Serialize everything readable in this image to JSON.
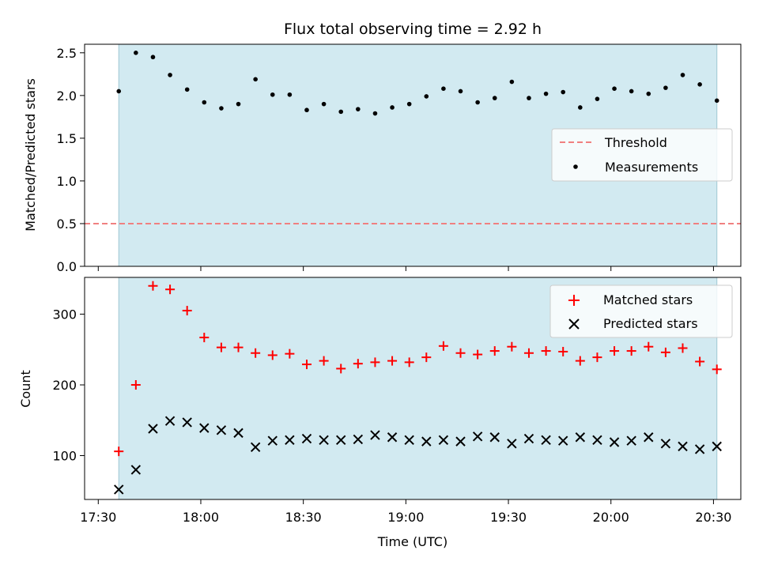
{
  "chart_data": [
    {
      "type": "scatter",
      "title": "Flux total observing time = 2.92 h",
      "ylabel": "Matched/Predicted stars",
      "xlabel": "",
      "ylim": [
        0,
        2.6
      ],
      "yticks": [
        0.0,
        0.5,
        1.0,
        1.5,
        2.0,
        2.5
      ],
      "ytick_labels": [
        "0.0",
        "0.5",
        "1.0",
        "1.5",
        "2.0",
        "2.5"
      ],
      "xlim": [
        "17:26",
        "20:38"
      ],
      "xticks": [
        "17:30",
        "18:00",
        "18:30",
        "19:00",
        "19:30",
        "20:00",
        "20:30"
      ],
      "shaded_interval": [
        "17:36",
        "20:31"
      ],
      "shade_color": "#add8e6",
      "threshold": {
        "name": "Threshold",
        "value": 0.5,
        "color": "#f08080",
        "style": "dashed"
      },
      "series": [
        {
          "name": "Measurements",
          "color": "#000000",
          "marker": "dot",
          "x": [
            "17:36",
            "17:41",
            "17:46",
            "17:51",
            "17:56",
            "18:01",
            "18:06",
            "18:11",
            "18:16",
            "18:21",
            "18:26",
            "18:31",
            "18:36",
            "18:41",
            "18:46",
            "18:51",
            "18:56",
            "19:01",
            "19:06",
            "19:11",
            "19:16",
            "19:21",
            "19:26",
            "19:31",
            "19:36",
            "19:41",
            "19:46",
            "19:51",
            "19:56",
            "20:01",
            "20:06",
            "20:11",
            "20:16",
            "20:21",
            "20:26",
            "20:31"
          ],
          "y": [
            2.05,
            2.5,
            2.45,
            2.24,
            2.07,
            1.92,
            1.85,
            1.9,
            2.19,
            2.01,
            2.01,
            1.83,
            1.9,
            1.81,
            1.84,
            1.79,
            1.86,
            1.9,
            1.99,
            2.08,
            2.05,
            1.92,
            1.97,
            2.16,
            1.97,
            2.02,
            2.04,
            1.86,
            1.96,
            2.08,
            2.05,
            2.02,
            2.09,
            2.24,
            2.13,
            1.94
          ]
        }
      ],
      "legend_position": "center-right"
    },
    {
      "type": "scatter",
      "title": "",
      "ylabel": "Count",
      "xlabel": "Time (UTC)",
      "ylim": [
        38,
        352
      ],
      "yticks": [
        100,
        200,
        300
      ],
      "ytick_labels": [
        "100",
        "200",
        "300"
      ],
      "xlim": [
        "17:26",
        "20:38"
      ],
      "xticks": [
        "17:30",
        "18:00",
        "18:30",
        "19:00",
        "19:30",
        "20:00",
        "20:30"
      ],
      "xtick_labels": [
        "17:30",
        "18:00",
        "18:30",
        "19:00",
        "19:30",
        "20:00",
        "20:30"
      ],
      "shaded_interval": [
        "17:36",
        "20:31"
      ],
      "shade_color": "#add8e6",
      "series": [
        {
          "name": "Matched stars",
          "color": "#ff0000",
          "marker": "plus",
          "x": [
            "17:36",
            "17:41",
            "17:46",
            "17:51",
            "17:56",
            "18:01",
            "18:06",
            "18:11",
            "18:16",
            "18:21",
            "18:26",
            "18:31",
            "18:36",
            "18:41",
            "18:46",
            "18:51",
            "18:56",
            "19:01",
            "19:06",
            "19:11",
            "19:16",
            "19:21",
            "19:26",
            "19:31",
            "19:36",
            "19:41",
            "19:46",
            "19:51",
            "19:56",
            "20:01",
            "20:06",
            "20:11",
            "20:16",
            "20:21",
            "20:26",
            "20:31"
          ],
          "y": [
            106,
            200,
            340,
            335,
            305,
            267,
            253,
            253,
            245,
            242,
            244,
            229,
            234,
            223,
            230,
            232,
            234,
            232,
            239,
            255,
            245,
            243,
            248,
            254,
            245,
            248,
            247,
            234,
            239,
            248,
            248,
            254,
            246,
            252,
            233,
            222
          ]
        },
        {
          "name": "Predicted stars",
          "color": "#000000",
          "marker": "x",
          "x": [
            "17:36",
            "17:41",
            "17:46",
            "17:51",
            "17:56",
            "18:01",
            "18:06",
            "18:11",
            "18:16",
            "18:21",
            "18:26",
            "18:31",
            "18:36",
            "18:41",
            "18:46",
            "18:51",
            "18:56",
            "19:01",
            "19:06",
            "19:11",
            "19:16",
            "19:21",
            "19:26",
            "19:31",
            "19:36",
            "19:41",
            "19:46",
            "19:51",
            "19:56",
            "20:01",
            "20:06",
            "20:11",
            "20:16",
            "20:21",
            "20:26",
            "20:31"
          ],
          "y": [
            52,
            80,
            138,
            149,
            147,
            139,
            136,
            132,
            112,
            121,
            122,
            124,
            122,
            122,
            123,
            129,
            126,
            122,
            120,
            122,
            120,
            127,
            126,
            117,
            124,
            122,
            121,
            126,
            122,
            119,
            121,
            126,
            117,
            113,
            109,
            113
          ]
        }
      ],
      "legend_position": "top-right"
    }
  ]
}
